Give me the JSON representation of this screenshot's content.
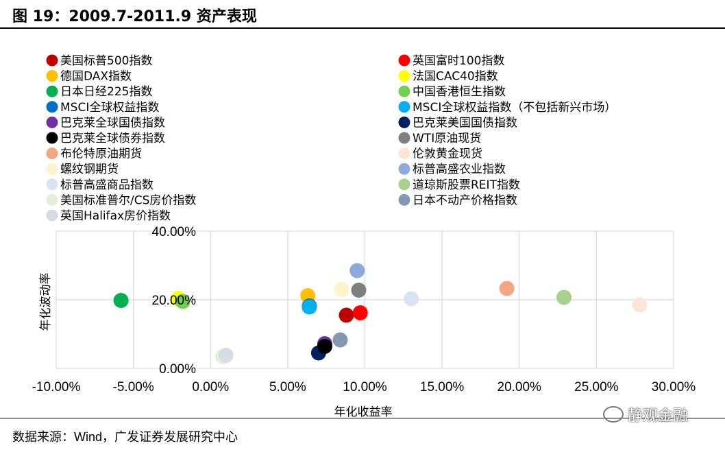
{
  "header": {
    "title": "图 19：2009.7-2011.9 资产表现"
  },
  "footer": {
    "source_label": "数据来源：",
    "source_wind": "Wind",
    "source_rest": "，广发证券发展研究中心",
    "watermark": "静观金融"
  },
  "chart_data": {
    "type": "scatter",
    "title": "",
    "xlabel": "年化收益率",
    "ylabel": "年化波动率",
    "xlim": [
      -0.1,
      0.3
    ],
    "ylim": [
      0.0,
      0.4
    ],
    "x_ticks": [
      -0.1,
      -0.05,
      0.0,
      0.05,
      0.1,
      0.15,
      0.2,
      0.25,
      0.3
    ],
    "y_ticks": [
      0.0,
      0.2,
      0.4
    ],
    "x_tick_labels": [
      "-10.00%",
      "-5.00%",
      "0.00%",
      "5.00%",
      "10.00%",
      "15.00%",
      "20.00%",
      "25.00%",
      "30.00%"
    ],
    "y_tick_labels": [
      "0.00%",
      "20.00%",
      "40.00%"
    ],
    "grid": true,
    "legend_position": "top",
    "series": [
      {
        "name": "美国标普500指数",
        "color": "#c00000",
        "x": 0.088,
        "y": 0.155
      },
      {
        "name": "英国富时100指数",
        "color": "#ff0000",
        "x": 0.097,
        "y": 0.162
      },
      {
        "name": "德国DAX指数",
        "color": "#ffc000",
        "x": 0.063,
        "y": 0.212
      },
      {
        "name": "法国CAC40指数",
        "color": "#ffff00",
        "x": -0.021,
        "y": 0.204
      },
      {
        "name": "日本日经225指数",
        "color": "#00b050",
        "x": -0.058,
        "y": 0.198
      },
      {
        "name": "中国香港恒生指数",
        "color": "#70d050",
        "x": -0.018,
        "y": 0.195
      },
      {
        "name": "MSCI全球权益指数",
        "color": "#0070c0",
        "x": 0.064,
        "y": 0.182
      },
      {
        "name": "MSCI全球权益指数（不包括新兴市场）",
        "color": "#00b0f0",
        "x": 0.064,
        "y": 0.179
      },
      {
        "name": "巴克莱全球国债指数",
        "color": "#7030a0",
        "x": 0.074,
        "y": 0.072
      },
      {
        "name": "巴克莱美国国债指数",
        "color": "#002060",
        "x": 0.07,
        "y": 0.045
      },
      {
        "name": "巴克莱全球债券指数",
        "color": "#000000",
        "x": 0.074,
        "y": 0.064
      },
      {
        "name": "WTI原油现货",
        "color": "#7f7f7f",
        "x": 0.096,
        "y": 0.228
      },
      {
        "name": "布伦特原油期货",
        "color": "#f4a582",
        "x": 0.192,
        "y": 0.233
      },
      {
        "name": "伦敦黄金现货",
        "color": "#fce4d6",
        "x": 0.278,
        "y": 0.185
      },
      {
        "name": "螺纹钢期货",
        "color": "#fff2cc",
        "x": 0.085,
        "y": 0.23
      },
      {
        "name": "标普高盛农业指数",
        "color": "#8eaadb",
        "x": 0.095,
        "y": 0.285
      },
      {
        "name": "标普高盛商品指数",
        "color": "#dae3f3",
        "x": 0.13,
        "y": 0.203
      },
      {
        "name": "道琼斯股票REIT指数",
        "color": "#a9d18e",
        "x": 0.229,
        "y": 0.207
      },
      {
        "name": "美国标准普尔/CS房价指数",
        "color": "#e2f0d9",
        "x": 0.008,
        "y": 0.034
      },
      {
        "name": "日本不动产价格指数",
        "color": "#8497b0",
        "x": 0.084,
        "y": 0.083
      },
      {
        "name": "英国Halifax房价指数",
        "color": "#d6dce4",
        "x": 0.01,
        "y": 0.038
      }
    ]
  }
}
